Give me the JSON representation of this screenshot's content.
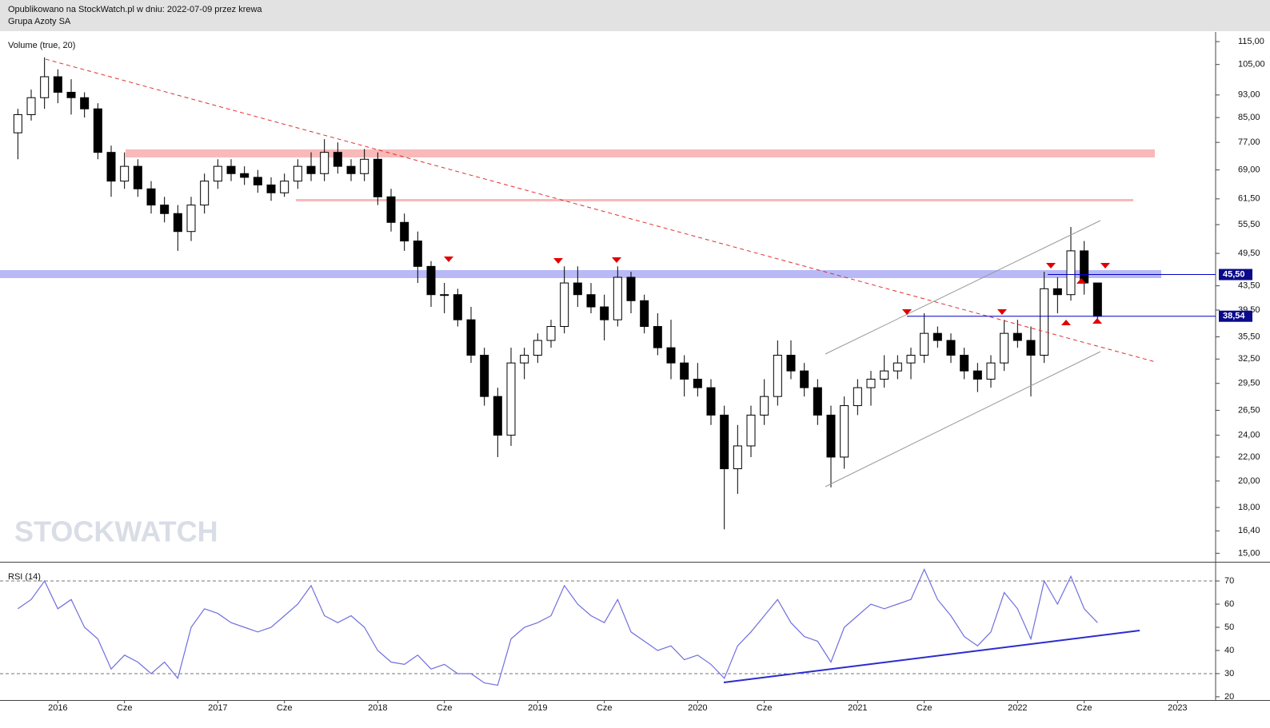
{
  "header": {
    "line1": "Opublikowano na StockWatch.pl w dniu: 2022-07-09 przez krewa",
    "line2": "Grupa Azoty SA"
  },
  "chart_data": [
    {
      "type": "candlestick",
      "label": "Volume (true, 20)",
      "watermark": "STOCKWATCH",
      "log_scale": true,
      "categories": [
        null,
        null,
        null,
        "2016",
        null,
        null,
        null,
        null,
        "Cze",
        null,
        null,
        null,
        null,
        null,
        null,
        "2017",
        null,
        null,
        null,
        null,
        "Cze",
        null,
        null,
        null,
        null,
        null,
        null,
        "2018",
        null,
        null,
        null,
        null,
        "Cze",
        null,
        null,
        null,
        null,
        null,
        null,
        "2019",
        null,
        null,
        null,
        null,
        "Cze",
        null,
        null,
        null,
        null,
        null,
        null,
        "2020",
        null,
        null,
        null,
        null,
        "Cze",
        null,
        null,
        null,
        null,
        null,
        null,
        "2021",
        null,
        null,
        null,
        null,
        "Cze",
        null,
        null,
        null,
        null,
        null,
        null,
        "2022",
        null,
        null,
        null,
        null,
        "Cze",
        null,
        null,
        null,
        null,
        null,
        null,
        "2023"
      ],
      "open": [
        80,
        86,
        92,
        100,
        94,
        92,
        88,
        74,
        66,
        70,
        64,
        60,
        58,
        54,
        60,
        66,
        70,
        68,
        67,
        65,
        63,
        66,
        70,
        68,
        74,
        70,
        68,
        72,
        62,
        56,
        52,
        47,
        42,
        42,
        38,
        33,
        28,
        24,
        32,
        33,
        35,
        37,
        44,
        42,
        40,
        38,
        45,
        41,
        37,
        34,
        32,
        30,
        29,
        26,
        21,
        23,
        26,
        28,
        33,
        31,
        29,
        26,
        22,
        27,
        29,
        30,
        31,
        32,
        33,
        36,
        35,
        33,
        31,
        30,
        32,
        36,
        35,
        33,
        43,
        42,
        50,
        44,
        null,
        null,
        null,
        null,
        null,
        null
      ],
      "high": [
        88,
        95,
        108,
        103,
        99,
        94,
        90,
        76,
        74,
        72,
        66,
        62,
        60,
        62,
        68,
        72,
        72,
        70,
        69,
        67,
        68,
        72,
        74,
        78,
        77,
        72,
        75,
        74,
        64,
        58,
        54,
        48,
        44,
        43,
        40,
        34,
        29,
        34,
        34,
        36,
        38,
        47,
        47,
        44,
        42,
        47,
        46,
        42,
        39,
        38,
        33,
        32,
        30,
        27,
        25,
        27,
        30,
        35,
        35,
        32,
        30,
        27,
        28,
        30,
        31,
        33,
        33,
        34,
        39,
        37,
        36,
        34,
        32,
        33,
        38,
        38,
        37,
        46,
        45,
        55,
        52,
        44,
        null,
        null,
        null,
        null,
        null,
        null
      ],
      "low": [
        72,
        84,
        88,
        90,
        86,
        85,
        72,
        62,
        64,
        62,
        58,
        56,
        50,
        52,
        58,
        64,
        66,
        65,
        63,
        61,
        62,
        64,
        66,
        66,
        68,
        66,
        66,
        60,
        54,
        50,
        44,
        40,
        39,
        37,
        32,
        27,
        22,
        23,
        30,
        32,
        34,
        36,
        40,
        39,
        35,
        37,
        39,
        36,
        33,
        30,
        28,
        28,
        25,
        16.5,
        19,
        22,
        25,
        27,
        30,
        28,
        25,
        19.5,
        21,
        26,
        27,
        29,
        30,
        30,
        32,
        34,
        32,
        30,
        28.5,
        29,
        31,
        34,
        28,
        32,
        39,
        41,
        42,
        38,
        null,
        null,
        null,
        null,
        null,
        null
      ],
      "close": [
        86,
        92,
        100,
        94,
        92,
        88,
        74,
        66,
        70,
        64,
        60,
        58,
        54,
        60,
        66,
        70,
        68,
        67,
        65,
        63,
        66,
        70,
        68,
        74,
        70,
        68,
        72,
        62,
        56,
        52,
        47,
        42,
        42,
        38,
        33,
        28,
        24,
        32,
        33,
        35,
        37,
        44,
        42,
        40,
        38,
        45,
        41,
        37,
        34,
        32,
        30,
        29,
        26,
        21,
        23,
        26,
        28,
        33,
        31,
        29,
        26,
        22,
        27,
        29,
        30,
        31,
        32,
        33,
        36,
        35,
        33,
        31,
        30,
        32,
        36,
        35,
        33,
        43,
        42,
        50,
        44,
        38.54,
        null,
        null,
        null,
        null,
        null,
        null
      ],
      "ylim": [
        14.5,
        118
      ],
      "yticks": [
        {
          "value": 115,
          "label": "115,00"
        },
        {
          "value": 105,
          "label": "105,00"
        },
        {
          "value": 93,
          "label": "93,00"
        },
        {
          "value": 85,
          "label": "85,00"
        },
        {
          "value": 77,
          "label": "77,00"
        },
        {
          "value": 69,
          "label": "69,00"
        },
        {
          "value": 61.5,
          "label": "61,50"
        },
        {
          "value": 55.5,
          "label": "55,50"
        },
        {
          "value": 49.5,
          "label": "49,50"
        },
        {
          "value": 43.5,
          "label": "43,50"
        },
        {
          "value": 39.5,
          "label": "39,50"
        },
        {
          "value": 35.5,
          "label": "35,50"
        },
        {
          "value": 32.5,
          "label": "32,50"
        },
        {
          "value": 29.5,
          "label": "29,50"
        },
        {
          "value": 26.5,
          "label": "26,50"
        },
        {
          "value": 24,
          "label": "24,00"
        },
        {
          "value": 22,
          "label": "22,00"
        },
        {
          "value": 20,
          "label": "20,00"
        },
        {
          "value": 18,
          "label": "18,00"
        },
        {
          "value": 16.4,
          "label": "16,40"
        },
        {
          "value": 15,
          "label": "15,00"
        }
      ],
      "levels": [
        {
          "value": 45.5,
          "label": "45,50"
        },
        {
          "value": 38.54,
          "label": "38,54"
        }
      ]
    },
    {
      "type": "line",
      "label": "RSI (14)",
      "color": "#6f6fe0",
      "values": [
        58,
        62,
        70,
        58,
        62,
        50,
        45,
        32,
        38,
        35,
        30,
        35,
        28,
        50,
        58,
        56,
        52,
        50,
        48,
        50,
        55,
        60,
        68,
        55,
        52,
        55,
        50,
        40,
        35,
        34,
        38,
        32,
        34,
        30,
        30,
        26,
        25,
        45,
        50,
        52,
        55,
        68,
        60,
        55,
        52,
        62,
        48,
        44,
        40,
        42,
        36,
        38,
        34,
        28,
        42,
        48,
        55,
        62,
        52,
        46,
        44,
        35,
        50,
        55,
        60,
        58,
        60,
        62,
        75,
        62,
        55,
        46,
        42,
        48,
        65,
        58,
        45,
        70,
        60,
        72,
        58,
        52,
        null,
        null,
        null,
        null,
        null,
        null
      ],
      "ylim": [
        18.6,
        77.6
      ],
      "yticks": [
        20,
        30,
        40,
        50,
        60,
        70
      ],
      "guides": [
        30,
        70
      ]
    }
  ]
}
